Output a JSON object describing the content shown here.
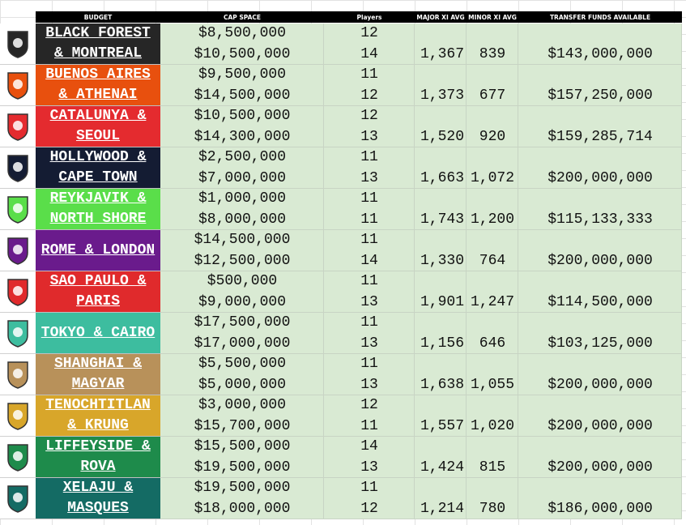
{
  "header": {
    "budget": "BUDGET",
    "cap_space": "CAP SPACE",
    "players": "Players",
    "major_xi_avg": "MAJOR XI AVG",
    "minor_xi_avg": "MINOR XI AVG",
    "transfer_funds": "TRANSFER FUNDS AVAILABLE"
  },
  "teams": [
    {
      "name_lines": [
        "BLACK FOREST",
        "& MONTREAL"
      ],
      "color": "#262626",
      "cap_space": [
        "$8,500,000",
        "$10,500,000"
      ],
      "players": [
        12,
        14
      ],
      "major_xi_avg": "1,367",
      "minor_xi_avg": "839",
      "transfer_funds": "$143,000,000"
    },
    {
      "name_lines": [
        "BUENOS AIRES",
        "& ATHENAI"
      ],
      "color": "#e8500e",
      "cap_space": [
        "$9,500,000",
        "$14,500,000"
      ],
      "players": [
        11,
        12
      ],
      "major_xi_avg": "1,373",
      "minor_xi_avg": "677",
      "transfer_funds": "$157,250,000"
    },
    {
      "name_lines": [
        "CATALUNYA &",
        "SEOUL"
      ],
      "color": "#e42b2f",
      "cap_space": [
        "$10,500,000",
        "$14,300,000"
      ],
      "players": [
        12,
        13
      ],
      "major_xi_avg": "1,520",
      "minor_xi_avg": "920",
      "transfer_funds": "$159,285,714"
    },
    {
      "name_lines": [
        "HOLLYWOOD &",
        "CAPE TOWN"
      ],
      "color": "#141c33",
      "cap_space": [
        "$2,500,000",
        "$7,000,000"
      ],
      "players": [
        11,
        13
      ],
      "major_xi_avg": "1,663",
      "minor_xi_avg": "1,072",
      "transfer_funds": "$200,000,000"
    },
    {
      "name_lines": [
        "REYKJAVIK &",
        "NORTH SHORE"
      ],
      "color": "#5ade4a",
      "cap_space": [
        "$1,000,000",
        "$8,000,000"
      ],
      "players": [
        11,
        11
      ],
      "major_xi_avg": "1,743",
      "minor_xi_avg": "1,200",
      "transfer_funds": "$115,133,333"
    },
    {
      "name_lines": [
        "ROME & LONDON"
      ],
      "color": "#6a1b8c",
      "cap_space": [
        "$14,500,000",
        "$12,500,000"
      ],
      "players": [
        11,
        14
      ],
      "major_xi_avg": "1,330",
      "minor_xi_avg": "764",
      "transfer_funds": "$200,000,000"
    },
    {
      "name_lines": [
        "SAO PAULO &",
        "PARIS"
      ],
      "color": "#e02a2c",
      "cap_space": [
        "$500,000",
        "$9,000,000"
      ],
      "players": [
        11,
        13
      ],
      "major_xi_avg": "1,901",
      "minor_xi_avg": "1,247",
      "transfer_funds": "$114,500,000"
    },
    {
      "name_lines": [
        "TOKYO & CAIRO"
      ],
      "color": "#3dbd9f",
      "cap_space": [
        "$17,500,000",
        "$17,000,000"
      ],
      "players": [
        11,
        13
      ],
      "major_xi_avg": "1,156",
      "minor_xi_avg": "646",
      "transfer_funds": "$103,125,000"
    },
    {
      "name_lines": [
        "SHANGHAI &",
        "MAGYAR"
      ],
      "color": "#b8915a",
      "cap_space": [
        "$5,500,000",
        "$5,000,000"
      ],
      "players": [
        11,
        13
      ],
      "major_xi_avg": "1,638",
      "minor_xi_avg": "1,055",
      "transfer_funds": "$200,000,000"
    },
    {
      "name_lines": [
        "TENOCHTITLAN",
        "& KRUNG"
      ],
      "color": "#d8a62a",
      "cap_space": [
        "$3,000,000",
        "$15,700,000"
      ],
      "players": [
        12,
        11
      ],
      "major_xi_avg": "1,557",
      "minor_xi_avg": "1,020",
      "transfer_funds": "$200,000,000"
    },
    {
      "name_lines": [
        "LIFFEYSIDE &",
        "ROVA"
      ],
      "color": "#1e8b4b",
      "cap_space": [
        "$15,500,000",
        "$19,500,000"
      ],
      "players": [
        14,
        13
      ],
      "major_xi_avg": "1,424",
      "minor_xi_avg": "815",
      "transfer_funds": "$200,000,000"
    },
    {
      "name_lines": [
        "XELAJU &",
        "MASQUES"
      ],
      "color": "#146b64",
      "cap_space": [
        "$19,500,000",
        "$18,000,000"
      ],
      "players": [
        11,
        12
      ],
      "major_xi_avg": "1,214",
      "minor_xi_avg": "780",
      "transfer_funds": "$186,000,000"
    }
  ]
}
